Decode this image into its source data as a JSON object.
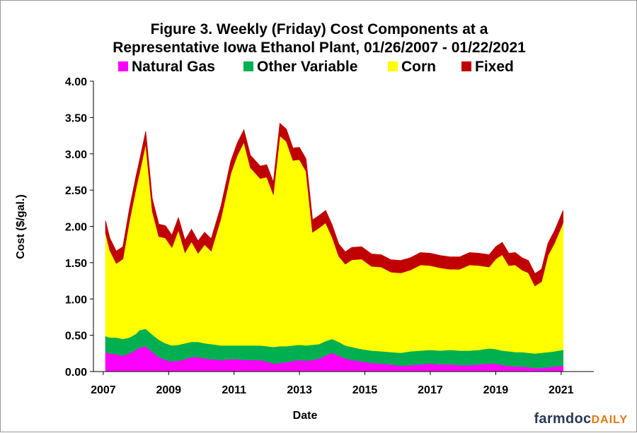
{
  "chart_data": {
    "type": "area",
    "stacked": true,
    "title_line1": "Figure 3. Weekly (Friday) Cost Components at a",
    "title_line2": "Representative Iowa Ethanol Plant, 01/26/2007 - 01/22/2021",
    "xlabel": "Date",
    "ylabel": "Cost ($/gal.)",
    "xlim": [
      2006.7,
      2022.0
    ],
    "ylim": [
      0,
      4.0
    ],
    "yticks": [
      "0.00",
      "0.50",
      "1.00",
      "1.50",
      "2.00",
      "2.50",
      "3.00",
      "3.50",
      "4.00"
    ],
    "xticks": [
      "2007",
      "2009",
      "2011",
      "2013",
      "2015",
      "2017",
      "2019",
      "2021"
    ],
    "legend_position": "top",
    "x": [
      2007.07,
      2007.2,
      2007.4,
      2007.6,
      2007.8,
      2008.0,
      2008.1,
      2008.3,
      2008.5,
      2008.7,
      2008.9,
      2009.1,
      2009.3,
      2009.5,
      2009.7,
      2009.9,
      2010.1,
      2010.3,
      2010.6,
      2010.9,
      2011.1,
      2011.3,
      2011.5,
      2011.8,
      2012.0,
      2012.2,
      2012.4,
      2012.6,
      2012.8,
      2013.0,
      2013.2,
      2013.4,
      2013.6,
      2013.8,
      2014.0,
      2014.2,
      2014.4,
      2014.6,
      2014.9,
      2015.2,
      2015.5,
      2015.8,
      2016.1,
      2016.4,
      2016.7,
      2017.0,
      2017.3,
      2017.6,
      2017.9,
      2018.2,
      2018.5,
      2018.8,
      2019.0,
      2019.2,
      2019.4,
      2019.6,
      2019.8,
      2020.0,
      2020.2,
      2020.4,
      2020.6,
      2020.8,
      2021.06
    ],
    "series": [
      {
        "name": "Natural Gas",
        "color": "#ff00ff",
        "values": [
          0.27,
          0.25,
          0.24,
          0.22,
          0.25,
          0.3,
          0.33,
          0.35,
          0.27,
          0.2,
          0.16,
          0.14,
          0.15,
          0.17,
          0.2,
          0.2,
          0.18,
          0.17,
          0.16,
          0.17,
          0.17,
          0.16,
          0.16,
          0.16,
          0.14,
          0.11,
          0.12,
          0.13,
          0.15,
          0.16,
          0.15,
          0.16,
          0.18,
          0.22,
          0.26,
          0.22,
          0.18,
          0.16,
          0.14,
          0.12,
          0.11,
          0.1,
          0.08,
          0.09,
          0.1,
          0.11,
          0.1,
          0.1,
          0.09,
          0.09,
          0.1,
          0.11,
          0.11,
          0.09,
          0.08,
          0.07,
          0.07,
          0.06,
          0.05,
          0.05,
          0.06,
          0.07,
          0.08
        ]
      },
      {
        "name": "Other Variable",
        "color": "#00b050",
        "values": [
          0.22,
          0.22,
          0.23,
          0.23,
          0.22,
          0.22,
          0.24,
          0.24,
          0.24,
          0.24,
          0.23,
          0.22,
          0.22,
          0.22,
          0.21,
          0.21,
          0.21,
          0.21,
          0.2,
          0.19,
          0.19,
          0.2,
          0.2,
          0.2,
          0.21,
          0.23,
          0.23,
          0.22,
          0.21,
          0.21,
          0.21,
          0.21,
          0.2,
          0.2,
          0.19,
          0.19,
          0.18,
          0.18,
          0.17,
          0.17,
          0.17,
          0.17,
          0.18,
          0.19,
          0.19,
          0.19,
          0.19,
          0.2,
          0.2,
          0.2,
          0.2,
          0.21,
          0.2,
          0.2,
          0.2,
          0.2,
          0.2,
          0.2,
          0.2,
          0.21,
          0.21,
          0.21,
          0.22
        ]
      },
      {
        "name": "Corn",
        "color": "#ffff00",
        "values": [
          1.42,
          1.2,
          1.02,
          1.1,
          1.6,
          2.0,
          2.15,
          2.55,
          1.7,
          1.42,
          1.45,
          1.35,
          1.58,
          1.25,
          1.38,
          1.22,
          1.36,
          1.28,
          1.75,
          2.37,
          2.62,
          2.8,
          2.45,
          2.3,
          2.33,
          2.1,
          2.9,
          2.82,
          2.55,
          2.55,
          2.4,
          1.55,
          1.6,
          1.63,
          1.4,
          1.18,
          1.12,
          1.2,
          1.24,
          1.16,
          1.16,
          1.1,
          1.1,
          1.12,
          1.18,
          1.16,
          1.14,
          1.11,
          1.12,
          1.18,
          1.16,
          1.12,
          1.24,
          1.32,
          1.18,
          1.2,
          1.13,
          1.1,
          0.93,
          0.98,
          1.33,
          1.49,
          1.75
        ]
      },
      {
        "name": "Fixed",
        "color": "#c00000",
        "values": [
          0.17,
          0.17,
          0.17,
          0.17,
          0.17,
          0.17,
          0.17,
          0.17,
          0.17,
          0.17,
          0.17,
          0.17,
          0.17,
          0.17,
          0.17,
          0.17,
          0.17,
          0.17,
          0.17,
          0.17,
          0.17,
          0.17,
          0.17,
          0.17,
          0.17,
          0.17,
          0.17,
          0.17,
          0.17,
          0.17,
          0.17,
          0.17,
          0.17,
          0.17,
          0.17,
          0.17,
          0.17,
          0.17,
          0.17,
          0.17,
          0.17,
          0.17,
          0.17,
          0.17,
          0.17,
          0.17,
          0.17,
          0.17,
          0.17,
          0.17,
          0.17,
          0.17,
          0.17,
          0.17,
          0.17,
          0.17,
          0.17,
          0.17,
          0.17,
          0.17,
          0.17,
          0.17,
          0.17
        ]
      }
    ]
  },
  "brand": {
    "part1": "farmdoc",
    "part2": "DAILY"
  }
}
